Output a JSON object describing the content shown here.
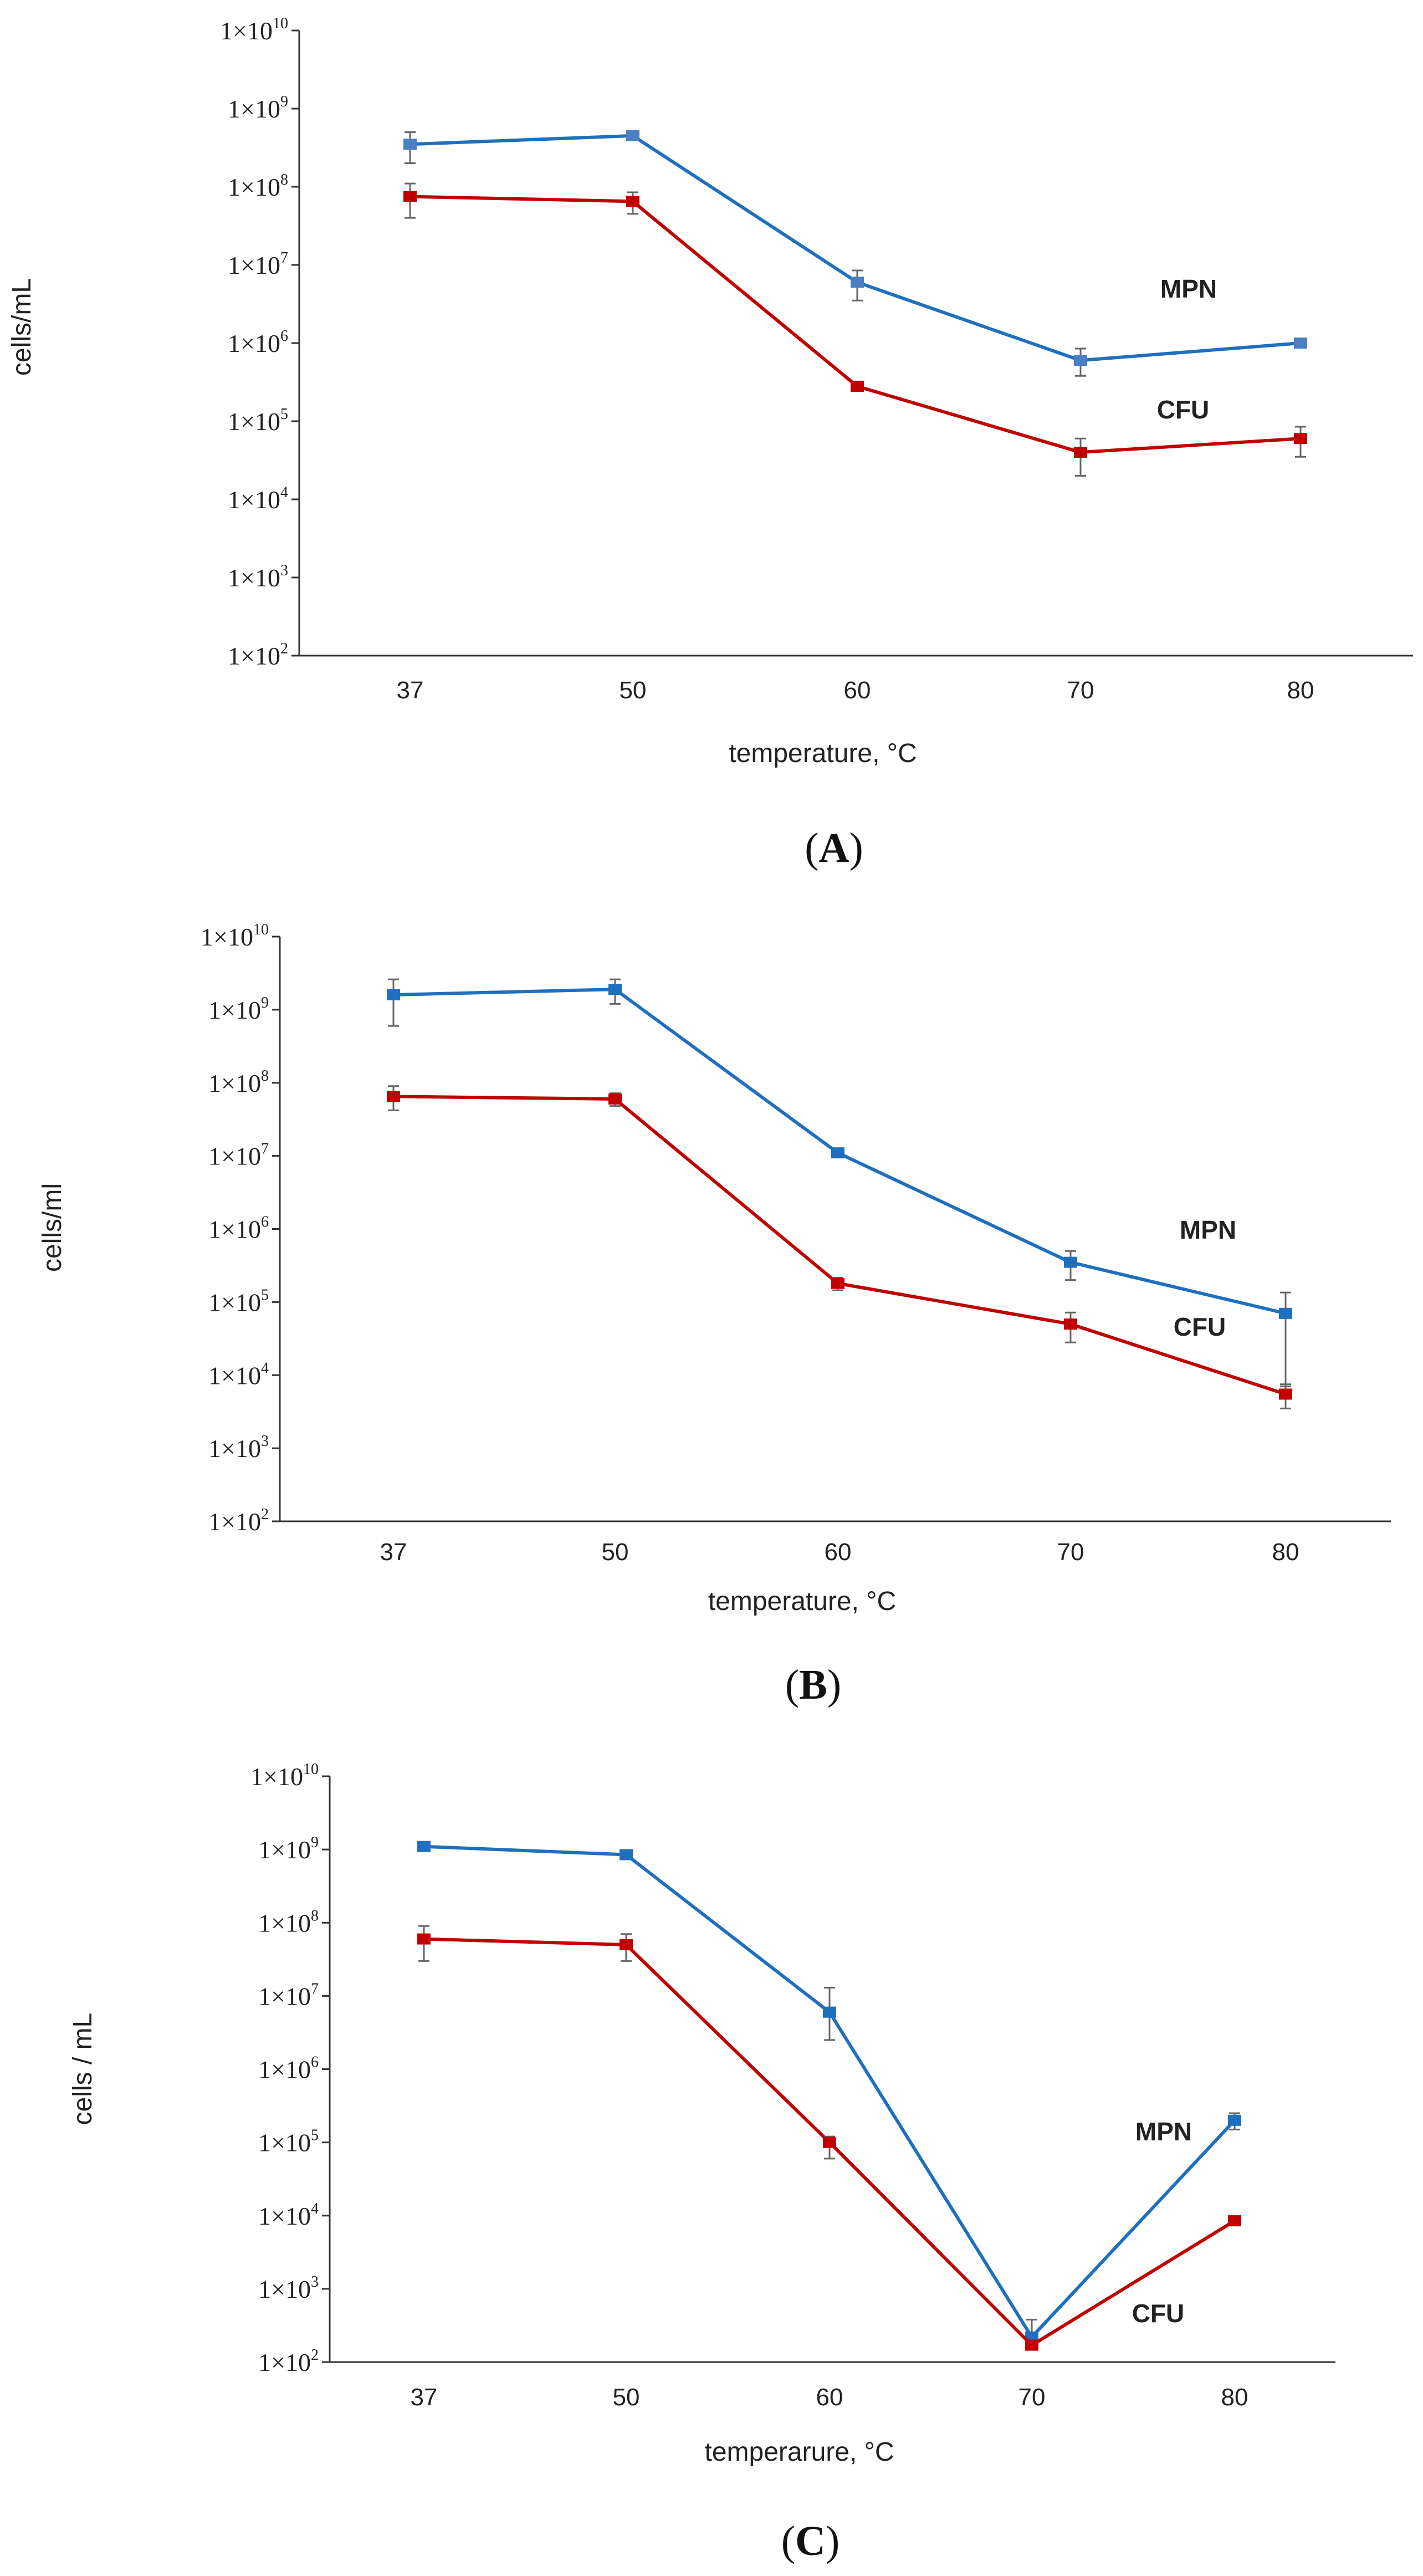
{
  "chart_data": [
    {
      "type": "line",
      "panel": "A",
      "panel_label": "(A)",
      "xlabel": "temperature, °C",
      "ylabel": "cells/mL",
      "y_scale": "log",
      "ylim": [
        100,
        10000000000
      ],
      "categories": [
        "37",
        "50",
        "60",
        "70",
        "80"
      ],
      "y_ticks": [
        {
          "m": "1×10",
          "e": "2"
        },
        {
          "m": "1×10",
          "e": "3"
        },
        {
          "m": "1×10",
          "e": "4"
        },
        {
          "m": "1×10",
          "e": "5"
        },
        {
          "m": "1×10",
          "e": "6"
        },
        {
          "m": "1×10",
          "e": "7"
        },
        {
          "m": "1×10",
          "e": "8"
        },
        {
          "m": "1×10",
          "e": "9"
        },
        {
          "m": "1×10",
          "e": "10"
        }
      ],
      "series": [
        {
          "name": "MPN",
          "color": "#1f6fbf",
          "marker": "#4a7fc1",
          "values": [
            350000000,
            450000000,
            6000000,
            600000,
            1000000
          ],
          "err_low": [
            200000000,
            420000000,
            3500000,
            380000,
            900000
          ],
          "err_high": [
            500000000,
            500000000,
            8500000,
            850000,
            1100000
          ]
        },
        {
          "name": "CFU",
          "color": "#c00000",
          "marker": "#c00000",
          "values": [
            75000000,
            65000000,
            280000,
            40000,
            60000
          ],
          "err_low": [
            40000000,
            45000000,
            260000,
            20000,
            35000
          ],
          "err_high": [
            110000000,
            85000000,
            310000,
            60000,
            85000
          ]
        }
      ],
      "annotations": [
        "MPN",
        "CFU"
      ]
    },
    {
      "type": "line",
      "panel": "B",
      "panel_label": "(B)",
      "xlabel": "temperature, °C",
      "ylabel": "cells/ml",
      "y_scale": "log",
      "ylim": [
        100,
        10000000000
      ],
      "categories": [
        "37",
        "50",
        "60",
        "70",
        "80"
      ],
      "y_ticks": [
        {
          "m": "1×10",
          "e": "2"
        },
        {
          "m": "1×10",
          "e": "3"
        },
        {
          "m": "1×10",
          "e": "4"
        },
        {
          "m": "1×10",
          "e": "5"
        },
        {
          "m": "1×10",
          "e": "6"
        },
        {
          "m": "1×10",
          "e": "7"
        },
        {
          "m": "1×10",
          "e": "8"
        },
        {
          "m": "1×10",
          "e": "9"
        },
        {
          "m": "1×10",
          "e": "10"
        }
      ],
      "series": [
        {
          "name": "MPN",
          "color": "#1f6fbf",
          "marker": "#1f6fbf",
          "values": [
            1600000000,
            1900000000,
            11000000,
            350000,
            70000
          ],
          "err_low": [
            600000000,
            1200000000,
            10000000,
            200000,
            7000
          ],
          "err_high": [
            2600000000,
            2600000000,
            12000000,
            500000,
            135000
          ]
        },
        {
          "name": "CFU",
          "color": "#c00000",
          "marker": "#c00000",
          "values": [
            65000000,
            60000000,
            180000,
            50000,
            5500
          ],
          "err_low": [
            42000000,
            48000000,
            145000,
            28000,
            3500
          ],
          "err_high": [
            90000000,
            72000000,
            215000,
            72000,
            7500
          ]
        }
      ],
      "annotations": [
        "MPN",
        "CFU"
      ]
    },
    {
      "type": "line",
      "panel": "C",
      "panel_label": "(C)",
      "xlabel": "temperarure, °C",
      "ylabel": "cells / mL",
      "y_scale": "log",
      "ylim": [
        100,
        10000000000
      ],
      "categories": [
        "37",
        "50",
        "60",
        "70",
        "80"
      ],
      "y_ticks": [
        {
          "m": "1×10",
          "e": "2"
        },
        {
          "m": "1×10",
          "e": "3"
        },
        {
          "m": "1×10",
          "e": "4"
        },
        {
          "m": "1×10",
          "e": "5"
        },
        {
          "m": "1×10",
          "e": "6"
        },
        {
          "m": "1×10",
          "e": "7"
        },
        {
          "m": "1×10",
          "e": "8"
        },
        {
          "m": "1×10",
          "e": "9"
        },
        {
          "m": "1×10",
          "e": "10"
        }
      ],
      "series": [
        {
          "name": "MPN",
          "color": "#1f6fbf",
          "marker": "#1f6fbf",
          "values": [
            1100000000,
            850000000,
            6000000,
            220,
            200000
          ],
          "err_low": [
            1050000000,
            800000000,
            2500000,
            150,
            150000
          ],
          "err_high": [
            1150000000,
            900000000,
            13000000,
            380,
            250000
          ]
        },
        {
          "name": "CFU",
          "color": "#c00000",
          "marker": "#c00000",
          "values": [
            60000000,
            50000000,
            100000,
            170,
            8500
          ],
          "err_low": [
            30000000,
            30000000,
            60000,
            150,
            8000
          ],
          "err_high": [
            90000000,
            70000000,
            120000,
            190,
            9000
          ]
        }
      ],
      "annotations": [
        "MPN",
        "CFU"
      ]
    }
  ]
}
